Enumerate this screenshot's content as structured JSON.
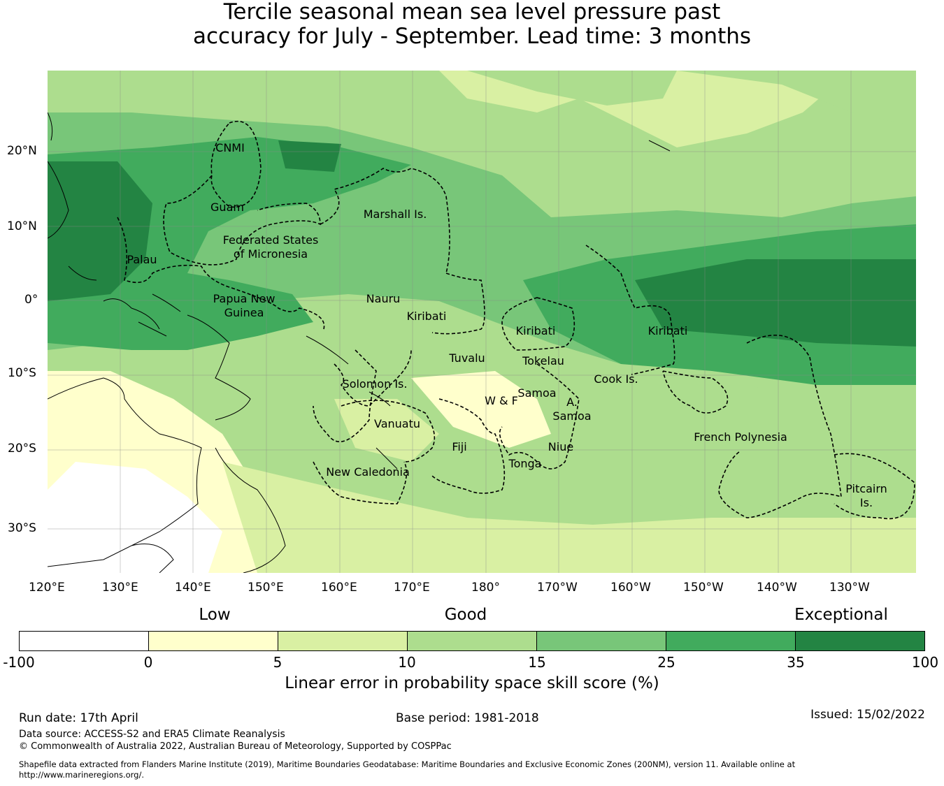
{
  "title": {
    "line1": "Tercile seasonal mean sea level pressure past",
    "line2": "accuracy for July - September. Lead time: 3 months"
  },
  "map": {
    "lat_labels": [
      "20°N",
      "10°N",
      "0°",
      "10°S",
      "20°S",
      "30°S"
    ],
    "lon_labels": [
      "120°E",
      "130°E",
      "140°E",
      "150°E",
      "160°E",
      "170°E",
      "180°",
      "170°W",
      "160°W",
      "150°W",
      "140°W",
      "130°W"
    ],
    "regions": [
      {
        "name": "CNMI"
      },
      {
        "name": "Guam"
      },
      {
        "name": "Marshall Is."
      },
      {
        "name": "Federated States\nof Micronesia"
      },
      {
        "name": "Palau"
      },
      {
        "name": "Papua New\nGuinea"
      },
      {
        "name": "Nauru"
      },
      {
        "name": "Kiribati"
      },
      {
        "name": "Kiribati"
      },
      {
        "name": "Kiribati"
      },
      {
        "name": "Tuvalu"
      },
      {
        "name": "Tokelau"
      },
      {
        "name": "Solomon Is."
      },
      {
        "name": "Samoa"
      },
      {
        "name": "W & F"
      },
      {
        "name": "A.\nSamoa"
      },
      {
        "name": "Cook Is."
      },
      {
        "name": "Vanuatu"
      },
      {
        "name": "Fiji"
      },
      {
        "name": "Niue"
      },
      {
        "name": "Tonga"
      },
      {
        "name": "New Caledonia"
      },
      {
        "name": "French Polynesia"
      },
      {
        "name": "Pitcairn\nIs."
      }
    ]
  },
  "legend": {
    "categories": [
      "Low",
      "Good",
      "Exceptional"
    ],
    "ticks": [
      "-100",
      "0",
      "5",
      "10",
      "15",
      "25",
      "35",
      "100"
    ],
    "colors": [
      "#ffffff",
      "#ffffcc",
      "#d9f0a3",
      "#addd8e",
      "#78c679",
      "#41ab5d",
      "#238443"
    ],
    "label": "Linear error in probability space skill score (%)"
  },
  "footer": {
    "run_date": "Run date: 17th April",
    "base_period": "Base period: 1981-2018",
    "issued": "Issued: 15/02/2022",
    "data_source": "Data source: ACCESS-S2 and ERA5 Climate Reanalysis",
    "copyright": "© Commonwealth of Australia 2022, Australian Bureau of Meteorology, Supported by COSPPac",
    "shapefile_line1": "Shapefile data extracted from Flanders Marine Institute (2019), Maritime Boundaries Geodatabase: Maritime Boundaries and Exclusive Economic Zones (200NM), version 11. Available online at",
    "shapefile_line2": "http://www.marineregions.org/."
  }
}
